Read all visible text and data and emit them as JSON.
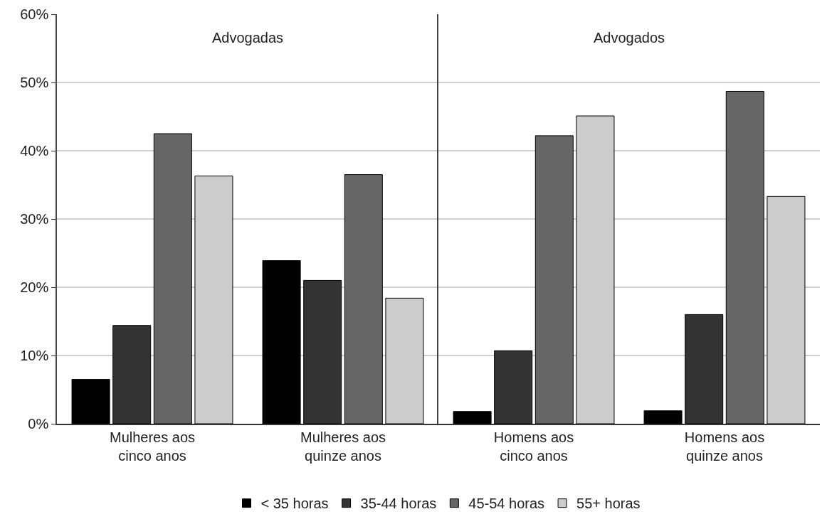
{
  "chart_data": [
    {
      "type": "bar",
      "title": "Advogadas",
      "categories": [
        "Mulheres aos\ncinco anos",
        "Mulheres aos\nquinze anos"
      ],
      "series": [
        {
          "name": "< 35 horas",
          "color": "#000000",
          "values": [
            6.5,
            23.9
          ]
        },
        {
          "name": "35-44 horas",
          "color": "#333333",
          "values": [
            14.4,
            21.0
          ]
        },
        {
          "name": "45-54 horas",
          "color": "#666666",
          "values": [
            42.5,
            36.5
          ]
        },
        {
          "name": "55+ horas",
          "color": "#cccccc",
          "values": [
            36.3,
            18.4
          ]
        }
      ],
      "ylim": [
        0,
        60
      ],
      "yticks": [
        {
          "value": 0,
          "label": "0%"
        },
        {
          "value": 10,
          "label": "10%"
        },
        {
          "value": 20,
          "label": "20%"
        },
        {
          "value": 30,
          "label": "30%"
        },
        {
          "value": 40,
          "label": "40%"
        },
        {
          "value": 50,
          "label": "50%"
        },
        {
          "value": 60,
          "label": "60%"
        }
      ],
      "grid": "y",
      "legend": "bottom"
    },
    {
      "type": "bar",
      "title": "Advogados",
      "categories": [
        "Homens aos\ncinco anos",
        "Homens aos\nquinze anos"
      ],
      "series": [
        {
          "name": "< 35 horas",
          "color": "#000000",
          "values": [
            1.8,
            1.9
          ]
        },
        {
          "name": "35-44 horas",
          "color": "#333333",
          "values": [
            10.7,
            16.0
          ]
        },
        {
          "name": "45-54 horas",
          "color": "#666666",
          "values": [
            42.2,
            48.7
          ]
        },
        {
          "name": "55+ horas",
          "color": "#cccccc",
          "values": [
            45.1,
            33.3
          ]
        }
      ],
      "ylim": [
        0,
        60
      ],
      "yticks": [
        {
          "value": 0,
          "label": null
        },
        {
          "value": 10,
          "label": null
        },
        {
          "value": 20,
          "label": null
        },
        {
          "value": 30,
          "label": null
        },
        {
          "value": 40,
          "label": null
        },
        {
          "value": 50,
          "label": null
        },
        {
          "value": 60,
          "label": null
        }
      ],
      "grid": "y",
      "tick_labels": "x",
      "legend": "bottom"
    }
  ]
}
